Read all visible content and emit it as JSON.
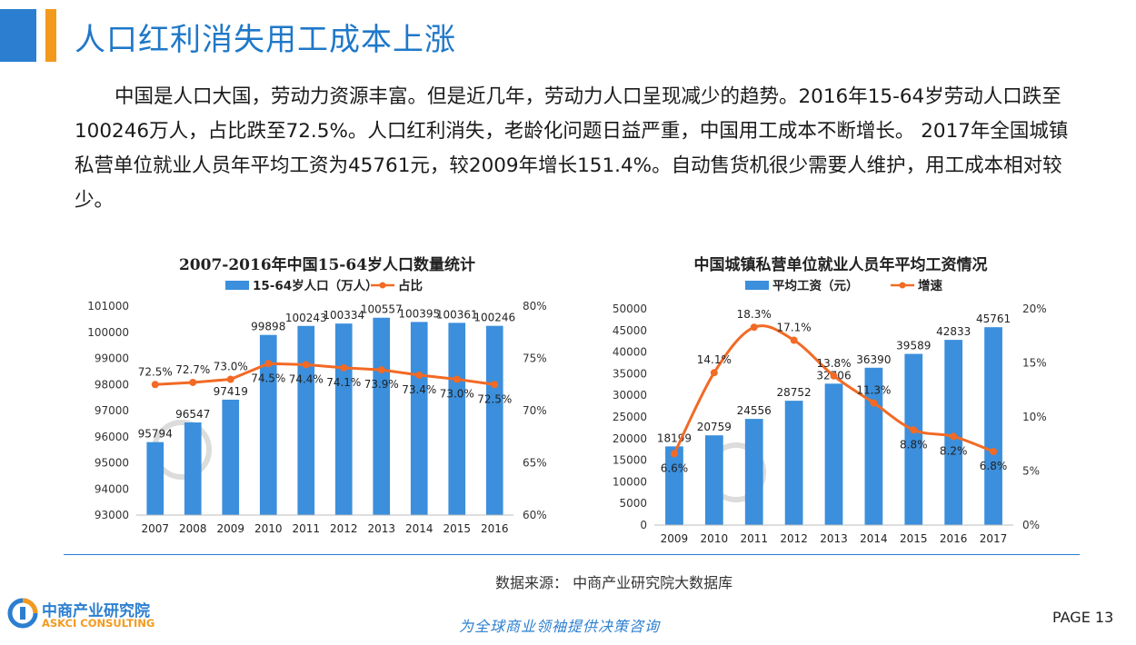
{
  "header": {
    "title": "人口红利消失用工成本上涨"
  },
  "body": {
    "paragraph": "中国是人口大国，劳动力资源丰富。但是近几年，劳动力人口呈现减少的趋势。2016年15-64岁劳动人口跌至100246万人，占比跌至72.5%。人口红利消失，老龄化问题日益严重，中国用工成本不断增长。 2017年全国城镇私营单位就业人员年平均工资为45761元，较2009年增长151.4%。自动售货机很少需要人维护，用工成本相对较少。"
  },
  "colors": {
    "bar": "#3b8fdc",
    "line": "#f26a25",
    "accent_blue": "#2c7fd0",
    "accent_orange": "#f39a1e"
  },
  "chart_data": [
    {
      "type": "bar",
      "title": "2007-2016年中国15-64岁人口数量统计",
      "categories": [
        "2007",
        "2008",
        "2009",
        "2010",
        "2011",
        "2012",
        "2013",
        "2014",
        "2015",
        "2016"
      ],
      "series": [
        {
          "name": "15-64岁人口（万人）",
          "type": "bar",
          "axis": "left",
          "values": [
            95794,
            96547,
            97419,
            99898,
            100243,
            100334,
            100557,
            100395,
            100361,
            100246
          ],
          "labels": [
            "95794",
            "96547",
            "97419",
            "99898",
            "100243",
            "100334",
            "100557",
            "100395",
            "100361",
            "100246"
          ]
        },
        {
          "name": "占比",
          "type": "line",
          "axis": "right",
          "values": [
            72.5,
            72.7,
            73.0,
            74.5,
            74.4,
            74.1,
            73.9,
            73.4,
            73.0,
            72.5
          ],
          "labels": [
            "72.5%",
            "72.7%",
            "73.0%",
            "74.5%",
            "74.4%",
            "74.1%",
            "73.9%",
            "73.4%",
            "73.0%",
            "72.5%"
          ]
        }
      ],
      "ylim": [
        93000,
        101000
      ],
      "yticks": [
        "93000",
        "94000",
        "95000",
        "96000",
        "97000",
        "98000",
        "99000",
        "100000",
        "101000"
      ],
      "y2lim": [
        60,
        80
      ],
      "y2ticks": [
        "60%",
        "65%",
        "70%",
        "75%",
        "80%"
      ],
      "legend": "top"
    },
    {
      "type": "bar",
      "title": "中国城镇私营单位就业人员年平均工资情况",
      "categories": [
        "2009",
        "2010",
        "2011",
        "2012",
        "2013",
        "2014",
        "2015",
        "2016",
        "2017"
      ],
      "series": [
        {
          "name": "平均工资（元）",
          "type": "bar",
          "axis": "left",
          "values": [
            18199,
            20759,
            24556,
            28752,
            32706,
            36390,
            39589,
            42833,
            45761
          ],
          "labels": [
            "18199",
            "20759",
            "24556",
            "28752",
            "32706",
            "36390",
            "39589",
            "42833",
            "45761"
          ]
        },
        {
          "name": "增速",
          "type": "line",
          "axis": "right",
          "smooth": true,
          "values": [
            6.6,
            14.1,
            18.3,
            17.1,
            13.8,
            11.3,
            8.8,
            8.2,
            6.8
          ],
          "labels": [
            "6.6%",
            "14.1%",
            "18.3%",
            "17.1%",
            "13.8%",
            "11.3%",
            "8.8%",
            "8.2%",
            "6.8%"
          ]
        }
      ],
      "ylim": [
        0,
        50000
      ],
      "yticks": [
        "0",
        "5000",
        "10000",
        "15000",
        "20000",
        "25000",
        "30000",
        "35000",
        "40000",
        "45000",
        "50000"
      ],
      "y2lim": [
        0,
        20
      ],
      "y2ticks": [
        "0%",
        "5%",
        "10%",
        "15%",
        "20%"
      ],
      "legend": "top"
    }
  ],
  "footer": {
    "source": "数据来源：  中商产业研究院大数据库",
    "logo_cn": "中商产业研究院",
    "logo_en": "ASKCI CONSULTING",
    "slogan": "为全球商业领袖提供决策咨询",
    "page": "PAGE  13"
  }
}
